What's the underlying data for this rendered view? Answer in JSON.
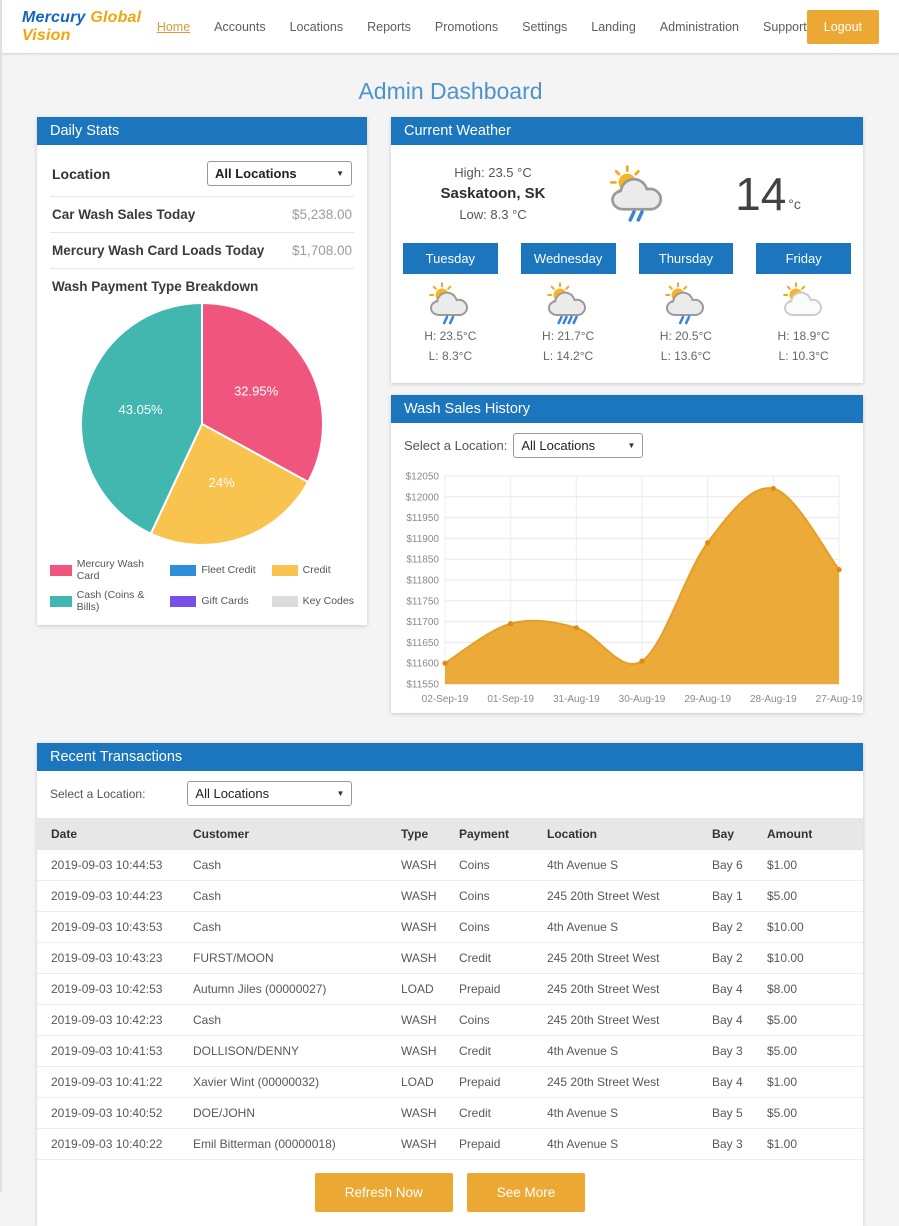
{
  "brand": {
    "part1": "Mercury",
    "part2": "Global Vision"
  },
  "nav": {
    "items": [
      {
        "label": "Home",
        "active": true
      },
      {
        "label": "Accounts",
        "active": false
      },
      {
        "label": "Locations",
        "active": false
      },
      {
        "label": "Reports",
        "active": false
      },
      {
        "label": "Promotions",
        "active": false
      },
      {
        "label": "Settings",
        "active": false
      },
      {
        "label": "Landing",
        "active": false
      },
      {
        "label": "Administration",
        "active": false
      },
      {
        "label": "Support",
        "active": false
      }
    ],
    "logout_label": "Logout"
  },
  "page_title": "Admin Dashboard",
  "colors": {
    "panel_header_blue": "#1b76bd",
    "accent_orange": "#eba832",
    "title_blue": "#4e93c9",
    "nav_active_orange": "#d89a3d",
    "logo_blue": "#1464c0",
    "logo_orange": "#f2a50c"
  },
  "daily_stats": {
    "title": "Daily Stats",
    "location_label": "Location",
    "location_value": "All Locations",
    "stats": [
      {
        "label": "Car Wash Sales Today",
        "value": "$5,238.00"
      },
      {
        "label": "Mercury Wash Card Loads Today",
        "value": "$1,708.00"
      }
    ],
    "breakdown_title": "Wash Payment Type Breakdown"
  },
  "weather": {
    "title": "Current Weather",
    "high_label": "High: 23.5 °C",
    "city": "Saskatoon, SK",
    "low_label": "Low: 8.3 °C",
    "current_temp": "14",
    "current_temp_unit": "°c",
    "current_icon": "sun-rain-light-icon",
    "forecast": [
      {
        "day": "Tuesday",
        "icon": "sun-rain-light-icon",
        "high": "H: 23.5°C",
        "low": "L: 8.3°C"
      },
      {
        "day": "Wednesday",
        "icon": "sun-rain-icon",
        "high": "H: 21.7°C",
        "low": "L: 14.2°C"
      },
      {
        "day": "Thursday",
        "icon": "sun-rain-light-icon",
        "high": "H: 20.5°C",
        "low": "L: 13.6°C"
      },
      {
        "day": "Friday",
        "icon": "sun-cloud-icon",
        "high": "H: 18.9°C",
        "low": "L: 10.3°C"
      }
    ]
  },
  "wash_sales": {
    "title": "Wash Sales History",
    "select_label": "Select a Location:",
    "select_value": "All Locations"
  },
  "transactions": {
    "title": "Recent Transactions",
    "select_label": "Select a Location:",
    "select_value": "All Locations",
    "columns": [
      "Date",
      "Customer",
      "Type",
      "Payment",
      "Location",
      "Bay",
      "Amount"
    ],
    "rows": [
      [
        "2019-09-03 10:44:53",
        "Cash",
        "WASH",
        "Coins",
        "4th Avenue S",
        "Bay 6",
        "$1.00"
      ],
      [
        "2019-09-03 10:44:23",
        "Cash",
        "WASH",
        "Coins",
        "245 20th Street West",
        "Bay 1",
        "$5.00"
      ],
      [
        "2019-09-03 10:43:53",
        "Cash",
        "WASH",
        "Coins",
        "4th Avenue S",
        "Bay 2",
        "$10.00"
      ],
      [
        "2019-09-03 10:43:23",
        "FURST/MOON",
        "WASH",
        "Credit",
        "245 20th Street West",
        "Bay 2",
        "$10.00"
      ],
      [
        "2019-09-03 10:42:53",
        "Autumn Jiles (00000027)",
        "LOAD",
        "Prepaid",
        "245 20th Street West",
        "Bay 4",
        "$8.00"
      ],
      [
        "2019-09-03 10:42:23",
        "Cash",
        "WASH",
        "Coins",
        "245 20th Street West",
        "Bay 4",
        "$5.00"
      ],
      [
        "2019-09-03 10:41:53",
        "DOLLISON/DENNY",
        "WASH",
        "Credit",
        "4th Avenue S",
        "Bay 3",
        "$5.00"
      ],
      [
        "2019-09-03 10:41:22",
        "Xavier Wint (00000032)",
        "LOAD",
        "Prepaid",
        "245 20th Street West",
        "Bay 4",
        "$1.00"
      ],
      [
        "2019-09-03 10:40:52",
        "DOE/JOHN",
        "WASH",
        "Credit",
        "4th Avenue S",
        "Bay 5",
        "$5.00"
      ],
      [
        "2019-09-03 10:40:22",
        "Emil Bitterman (00000018)",
        "WASH",
        "Prepaid",
        "4th Avenue S",
        "Bay 3",
        "$1.00"
      ]
    ],
    "refresh_label": "Refresh Now",
    "see_more_label": "See More"
  },
  "chart_data": [
    {
      "type": "pie",
      "title": "Wash Payment Type Breakdown",
      "slices": [
        {
          "label": "Mercury Wash Card",
          "value": 32.95,
          "color": "#f0557d"
        },
        {
          "label": "Fleet Credit",
          "value": 0,
          "color": "#2d8fd9"
        },
        {
          "label": "Credit",
          "value": 24,
          "color": "#f9c350"
        },
        {
          "label": "Cash (Coins & Bills)",
          "value": 43.05,
          "color": "#41b7b0"
        },
        {
          "label": "Gift Cards",
          "value": 0,
          "color": "#7a4fe9"
        },
        {
          "label": "Key Codes",
          "value": 0,
          "color": "#dcdcdc"
        }
      ],
      "label_format": "percent",
      "legend_position": "bottom"
    },
    {
      "type": "area",
      "title": "Wash Sales History",
      "x": [
        "02-Sep-19",
        "01-Sep-19",
        "31-Aug-19",
        "30-Aug-19",
        "29-Aug-19",
        "28-Aug-19",
        "27-Aug-19"
      ],
      "values": [
        11600,
        11695,
        11685,
        11605,
        11890,
        12020,
        11825
      ],
      "ylim": [
        11550,
        12050
      ],
      "ytick_step": 50,
      "y_prefix": "$",
      "grid": true,
      "fill_color": "#ecaa38",
      "line_color": "#e79e28",
      "marker_color": "#e08a0e"
    }
  ]
}
